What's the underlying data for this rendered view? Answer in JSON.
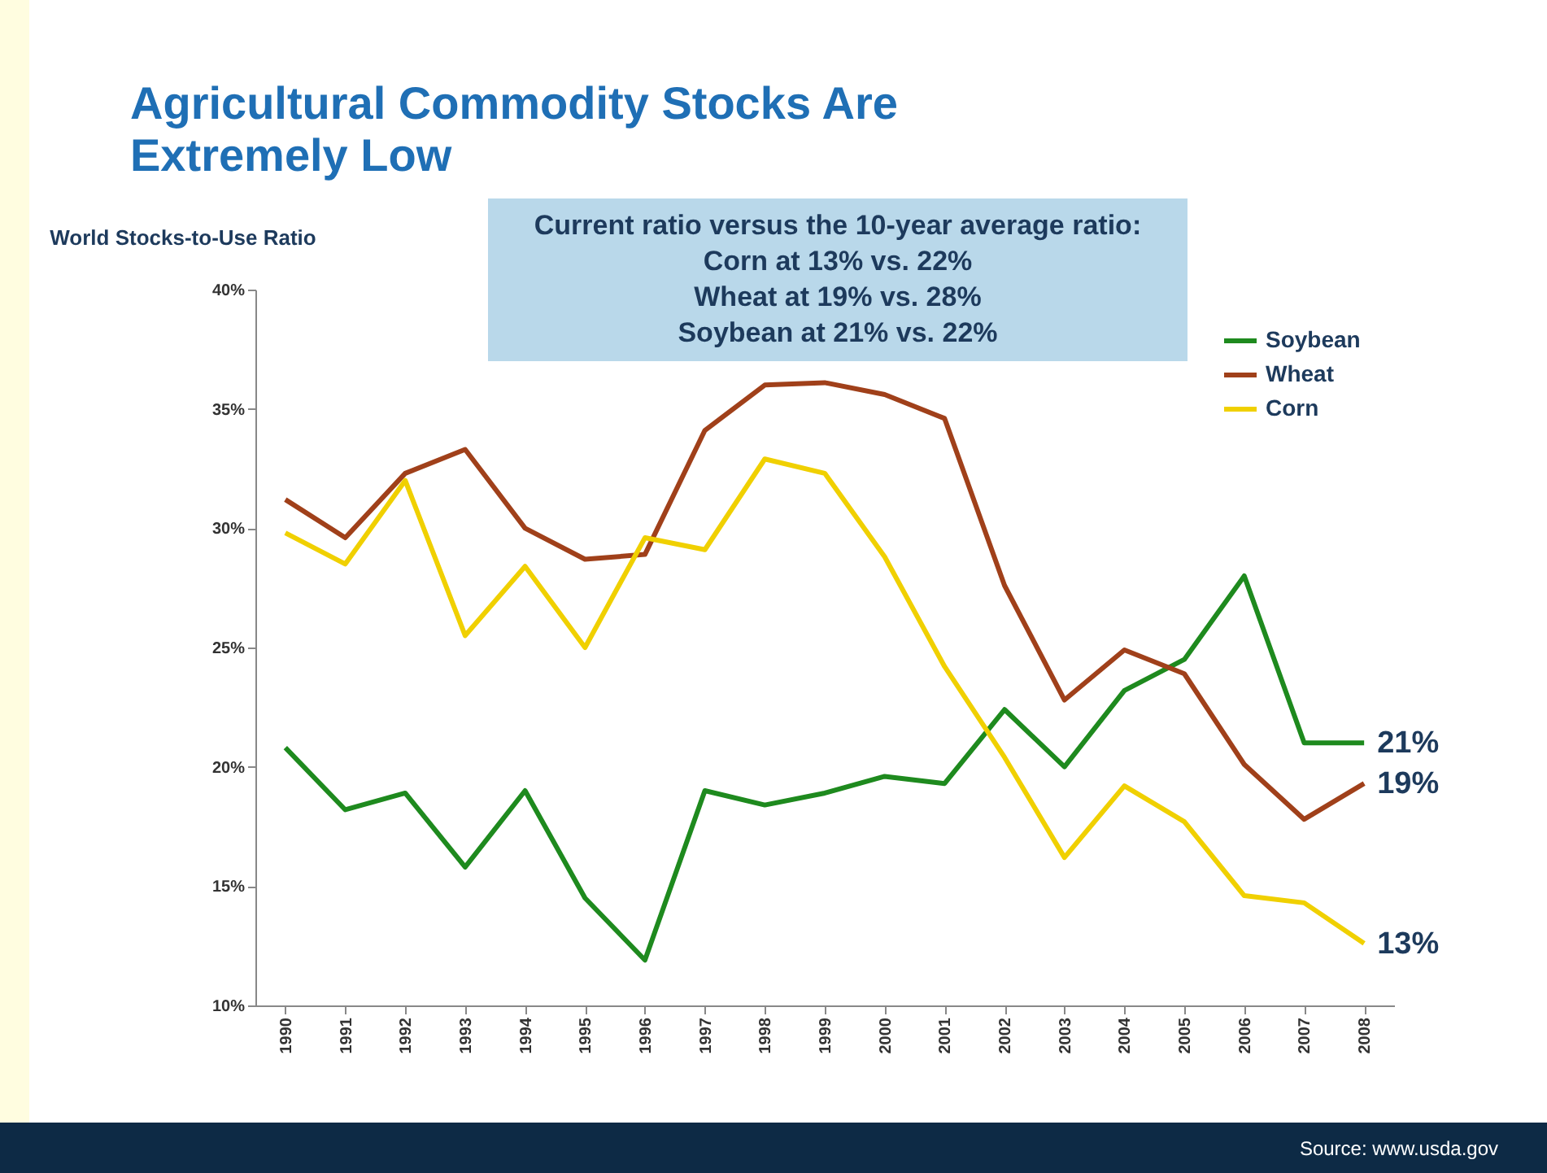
{
  "chart_data": {
    "type": "line",
    "title": "Agricultural Commodity Stocks Are Extremely Low",
    "ylabel": "World Stocks-to-Use Ratio",
    "annotations": [
      "Current ratio versus the 10-year average ratio:",
      "Corn at 13% vs. 22%",
      "Wheat at 19% vs. 28%",
      "Soybean at 21% vs. 22%",
      "Source: www.usda.gov"
    ],
    "categories": [
      "1990",
      "1991",
      "1992",
      "1993",
      "1994",
      "1995",
      "1996",
      "1997",
      "1998",
      "1999",
      "2000",
      "2001",
      "2002",
      "2003",
      "2004",
      "2005",
      "2006",
      "2007",
      "2008"
    ],
    "series": [
      {
        "name": "Soybean",
        "color": "#1e8a1e",
        "values": [
          20.8,
          18.2,
          18.9,
          15.8,
          19,
          14.5,
          11.9,
          19,
          18.4,
          18.9,
          19.6,
          19.3,
          22.4,
          20,
          23.2,
          24.5,
          28,
          21,
          21
        ],
        "value_labels": [
          null,
          null,
          null,
          null,
          null,
          null,
          null,
          null,
          null,
          null,
          null,
          null,
          null,
          null,
          null,
          null,
          null,
          null,
          "21%"
        ]
      },
      {
        "name": "Wheat",
        "color": "#a0401a",
        "values": [
          31.2,
          29.6,
          32.3,
          33.3,
          30,
          28.7,
          28.9,
          34.1,
          36,
          36.1,
          35.6,
          34.6,
          27.6,
          22.8,
          24.9,
          23.9,
          20.1,
          17.8,
          19.3
        ],
        "value_labels": [
          null,
          null,
          null,
          null,
          null,
          null,
          null,
          null,
          null,
          null,
          null,
          null,
          null,
          null,
          null,
          null,
          null,
          null,
          "19%"
        ]
      },
      {
        "name": "Corn",
        "color": "#f0d000",
        "values": [
          29.8,
          28.5,
          32,
          25.5,
          28.4,
          25,
          29.6,
          29.1,
          32.9,
          32.3,
          28.8,
          24.2,
          20.4,
          16.2,
          19.2,
          17.7,
          14.6,
          14.3,
          12.6
        ],
        "value_labels": [
          null,
          null,
          null,
          null,
          null,
          null,
          null,
          null,
          null,
          null,
          null,
          null,
          null,
          null,
          null,
          null,
          null,
          null,
          "13%"
        ]
      }
    ],
    "ylim": [
      10,
      40
    ],
    "yticks": [
      {
        "value": 10,
        "label": "10%"
      },
      {
        "value": 15,
        "label": "15%"
      },
      {
        "value": 20,
        "label": "20%"
      },
      {
        "value": 25,
        "label": "25%"
      },
      {
        "value": 30,
        "label": "30%"
      },
      {
        "value": 35,
        "label": "35%"
      },
      {
        "value": 40,
        "label": "40%"
      }
    ],
    "grid": false,
    "legend": "top right",
    "marker": "none",
    "line_style": "solid"
  }
}
